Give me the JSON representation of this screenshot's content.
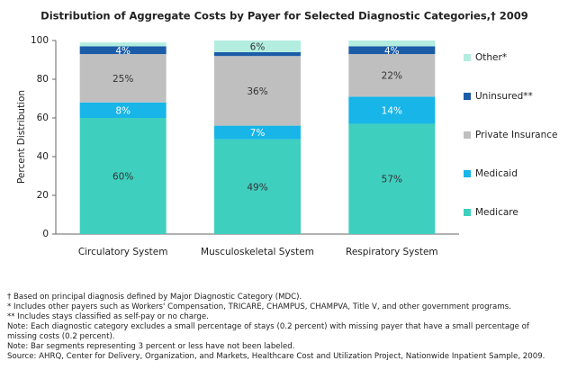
{
  "chart_data": {
    "type": "stacked_bar",
    "title": "Distribution of Aggregate Costs by Payer for Selected Diagnostic Categories,† 2009",
    "ylabel": "Percent Distribution",
    "categories": [
      "Circulatory System",
      "Musculoskeletal System",
      "Respiratory System"
    ],
    "series": [
      {
        "name": "Medicare",
        "color": "#3fcfbf",
        "values": [
          60,
          49,
          57
        ],
        "value_labels": [
          "60%",
          "49%",
          "57%"
        ]
      },
      {
        "name": "Medicaid",
        "color": "#17b5e8",
        "values": [
          8,
          7,
          14
        ],
        "value_labels": [
          "8%",
          "7%",
          "14%"
        ]
      },
      {
        "name": "Private Insurance",
        "color": "#bfbfbf",
        "values": [
          25,
          36,
          22
        ],
        "value_labels": [
          "25%",
          "36%",
          "22%"
        ]
      },
      {
        "name": "Uninsured**",
        "color": "#1b5ca8",
        "values": [
          4,
          2,
          4
        ],
        "value_labels": [
          "4%",
          null,
          "4%"
        ]
      },
      {
        "name": "Other*",
        "color": "#b2ede0",
        "values": [
          2,
          6,
          3
        ],
        "value_labels": [
          null,
          "6%",
          null
        ]
      }
    ],
    "ylim": [
      0,
      100
    ],
    "yticks": [
      0,
      20,
      40,
      60,
      80,
      100
    ],
    "grid": false,
    "legend": "right"
  },
  "notes": [
    "† Based on principal diagnosis defined by Major Diagnostic Category (MDC).",
    "* Includes other payers such as Workers' Compensation, TRICARE, CHAMPUS, CHAMPVA, Title V, and other government programs.",
    "** Includes stays classified as self-pay or no charge.",
    "Note: Each diagnostic category excludes a small percentage of stays (0.2 percent) with missing payer that have a small percentage of missing costs (0.2 percent).",
    "Note: Bar segments representing 3 percent or less have not been labeled.",
    "Source: AHRQ, Center for Delivery, Organization, and Markets, Healthcare Cost and Utilization Project, Nationwide Inpatient Sample, 2009."
  ]
}
